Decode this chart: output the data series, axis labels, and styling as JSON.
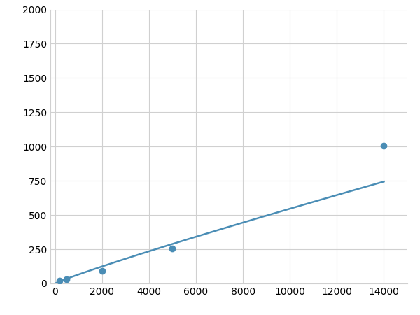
{
  "x": [
    0,
    200,
    500,
    2000,
    5000,
    14000
  ],
  "y": [
    0,
    20,
    30,
    90,
    255,
    1005
  ],
  "data_points_x": [
    200,
    500,
    2000,
    5000,
    14000
  ],
  "data_points_y": [
    20,
    30,
    90,
    255,
    1005
  ],
  "line_color": "#4a8db5",
  "marker_color": "#4a8db5",
  "marker_size": 6,
  "line_width": 1.8,
  "xlim": [
    -200,
    15000
  ],
  "ylim": [
    0,
    2000
  ],
  "xticks": [
    0,
    2000,
    4000,
    6000,
    8000,
    10000,
    12000,
    14000
  ],
  "yticks": [
    0,
    250,
    500,
    750,
    1000,
    1250,
    1500,
    1750,
    2000
  ],
  "grid_color": "#d0d0d0",
  "background_color": "#ffffff",
  "tick_fontsize": 10
}
